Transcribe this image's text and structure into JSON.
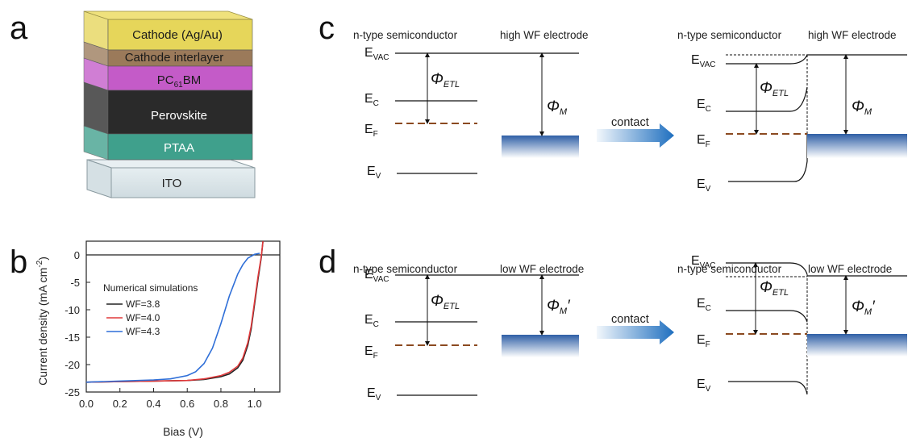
{
  "panels": {
    "a": "a",
    "b": "b",
    "c": "c",
    "d": "d"
  },
  "device_stack": {
    "layers": [
      {
        "label_main": "Cathode (Ag/Au)",
        "color": "#e6d65a"
      },
      {
        "label_main": "Cathode interlayer",
        "color": "#9b7a5a"
      },
      {
        "label_main": "PC",
        "label_sub": "61",
        "label_tail": "BM",
        "color": "#c45bc8"
      },
      {
        "label_main": "Perovskite",
        "color": "#2a2a2a"
      },
      {
        "label_main": "PTAA",
        "color": "#3fa08c"
      },
      {
        "label_main": "ITO",
        "color": "#dde6ea"
      }
    ]
  },
  "band_diagrams": {
    "c": {
      "left_header": "n-type semiconductor",
      "right_header": "high WF electrode",
      "after_left_header": "n-type semiconductor",
      "after_right_header": "high WF electrode",
      "contact_label": "contact",
      "phi_etl": {
        "main": "Φ",
        "sub": "ETL"
      },
      "phi_m": {
        "main": "Φ",
        "sub": "M",
        "prime": ""
      }
    },
    "d": {
      "left_header": "n-type semiconductor",
      "right_header": "low WF electrode",
      "after_left_header": "n-type semiconductor",
      "after_right_header": "low WF electrode",
      "contact_label": "contact",
      "phi_etl": {
        "main": "Φ",
        "sub": "ETL"
      },
      "phi_m": {
        "main": "Φ",
        "sub": "M",
        "prime": "′"
      }
    },
    "levels": {
      "vac": {
        "main": "E",
        "sub": "VAC"
      },
      "c": {
        "main": "E",
        "sub": "C"
      },
      "f": {
        "main": "E",
        "sub": "F"
      },
      "v": {
        "main": "E",
        "sub": "V"
      }
    }
  },
  "colors": {
    "fermi": "#8b4a20",
    "electrode_top": "#2f5fa6",
    "arrow_start": "#eaf2fb",
    "arrow_end": "#1f6fbf"
  },
  "chart_data": {
    "type": "line",
    "title": "",
    "xlabel": "Bias (V)",
    "ylabel": "Current density (mA cm",
    "ylabel_sup": "-2",
    "ylabel_tail": ")",
    "xlim": [
      0.0,
      1.15
    ],
    "ylim": [
      -25,
      2.5
    ],
    "xticks": [
      "0.0",
      "0.2",
      "0.4",
      "0.6",
      "0.8",
      "1.0"
    ],
    "yticks": [
      "0",
      "-5",
      "-10",
      "-15",
      "-20",
      "-25"
    ],
    "legend_title": "Numerical simulations",
    "legend_position": "left",
    "series": [
      {
        "name": "WF=3.8",
        "color": "#222222",
        "x": [
          0.0,
          0.2,
          0.4,
          0.6,
          0.7,
          0.8,
          0.85,
          0.9,
          0.93,
          0.96,
          0.98,
          1.0,
          1.02,
          1.04,
          1.05
        ],
        "y": [
          -23.2,
          -23.1,
          -23.0,
          -22.9,
          -22.7,
          -22.2,
          -21.7,
          -20.6,
          -19.2,
          -16.5,
          -13.5,
          -9.0,
          -4.5,
          -0.5,
          2.5
        ]
      },
      {
        "name": "WF=4.0",
        "color": "#e0383a",
        "x": [
          0.0,
          0.2,
          0.4,
          0.6,
          0.7,
          0.8,
          0.85,
          0.9,
          0.93,
          0.96,
          0.98,
          1.0,
          1.02,
          1.04,
          1.05
        ],
        "y": [
          -23.2,
          -23.1,
          -23.0,
          -22.9,
          -22.6,
          -22.0,
          -21.4,
          -20.3,
          -18.8,
          -16.0,
          -13.0,
          -8.5,
          -4.0,
          -0.3,
          2.5
        ]
      },
      {
        "name": "WF=4.3",
        "color": "#2f6fd8",
        "x": [
          0.0,
          0.2,
          0.4,
          0.5,
          0.6,
          0.65,
          0.7,
          0.75,
          0.8,
          0.85,
          0.9,
          0.93,
          0.96,
          1.0,
          1.03
        ],
        "y": [
          -23.2,
          -23.0,
          -22.8,
          -22.6,
          -22.0,
          -21.3,
          -19.8,
          -17.0,
          -12.5,
          -7.5,
          -3.5,
          -1.8,
          -0.6,
          0.1,
          0.3
        ]
      }
    ]
  }
}
